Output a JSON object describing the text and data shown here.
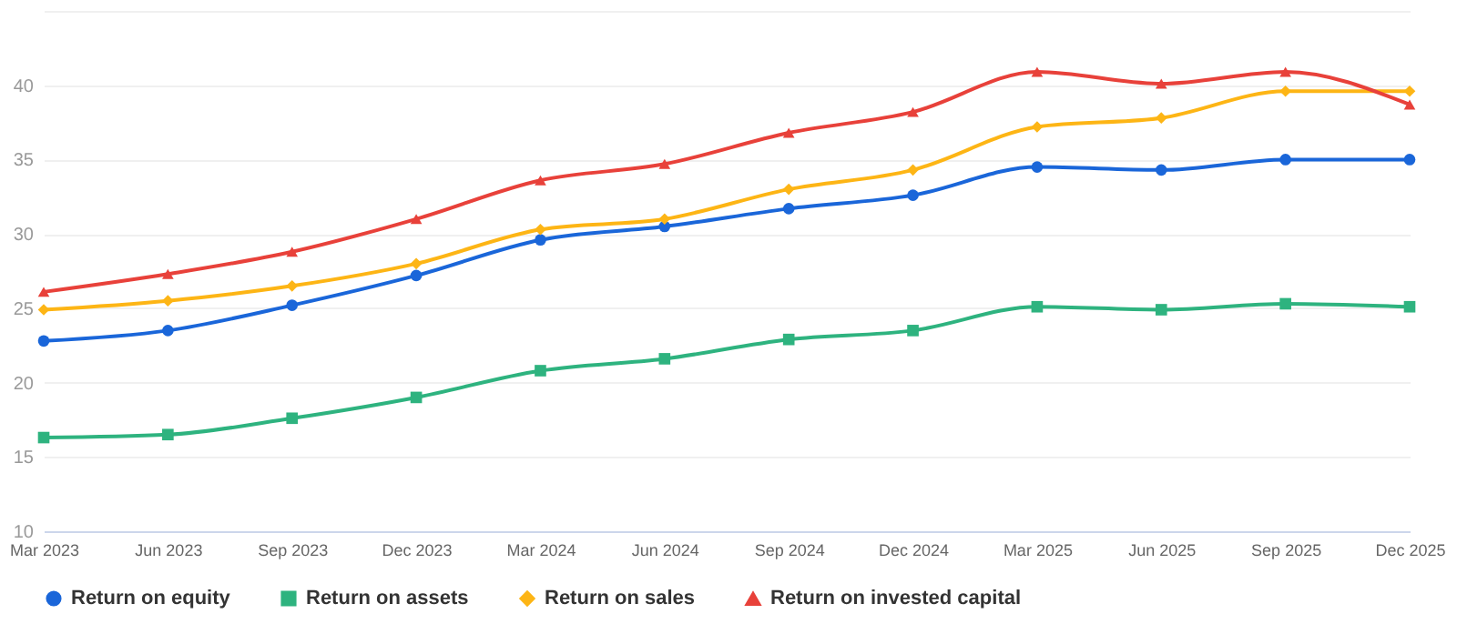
{
  "chart_data": {
    "type": "line",
    "categories": [
      "Mar 2023",
      "Jun 2023",
      "Sep 2023",
      "Dec 2023",
      "Mar 2024",
      "Jun 2024",
      "Sep 2024",
      "Dec 2024",
      "Mar 2025",
      "Jun 2025",
      "Sep 2025",
      "Dec 2025"
    ],
    "series": [
      {
        "name": "Return on equity",
        "color": "#1a66d9",
        "marker": "circle",
        "values": [
          22.8,
          23.5,
          25.2,
          27.2,
          29.6,
          30.5,
          31.7,
          32.6,
          34.5,
          34.3,
          35.0,
          35.0
        ]
      },
      {
        "name": "Return on assets",
        "color": "#2eb37f",
        "marker": "square",
        "values": [
          16.3,
          16.5,
          17.6,
          19.0,
          20.8,
          21.6,
          22.9,
          23.5,
          25.1,
          24.9,
          25.3,
          25.1
        ]
      },
      {
        "name": "Return on sales",
        "color": "#fdb515",
        "marker": "diamond",
        "values": [
          24.9,
          25.5,
          26.5,
          28.0,
          30.3,
          31.0,
          33.0,
          34.3,
          37.2,
          37.8,
          39.6,
          39.6
        ]
      },
      {
        "name": "Return on invested capital",
        "color": "#e8413a",
        "marker": "triangle",
        "values": [
          26.1,
          27.3,
          28.8,
          31.0,
          33.6,
          34.7,
          36.8,
          38.2,
          40.9,
          40.1,
          40.9,
          38.7
        ]
      }
    ],
    "ylim": [
      10,
      45
    ],
    "yticks": [
      10,
      15,
      20,
      25,
      30,
      35,
      40,
      {
        "value": 45,
        "label": null
      }
    ],
    "grid": "y",
    "legend": "bottom",
    "line_style": "solid"
  }
}
